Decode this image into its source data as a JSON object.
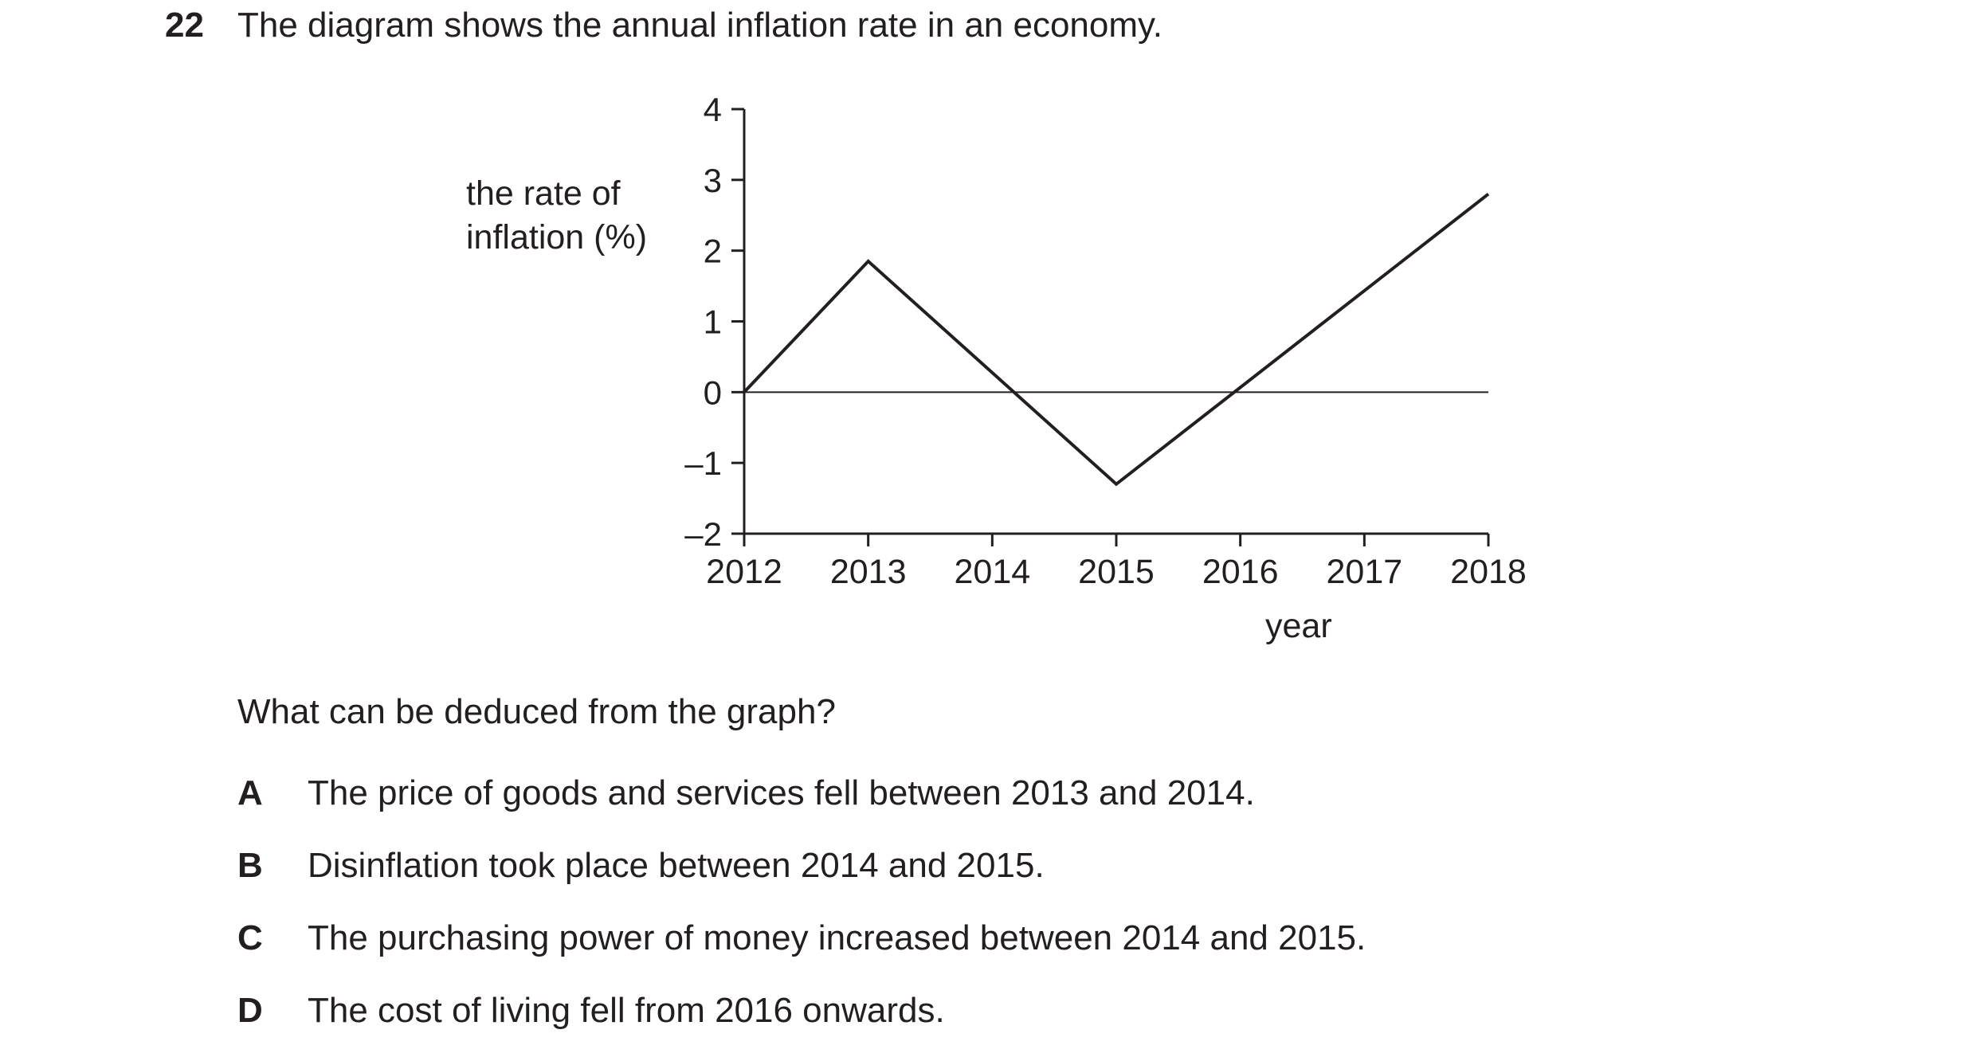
{
  "question": {
    "number": "22",
    "text": "The diagram shows the annual inflation rate in an economy.",
    "prompt": "What can be deduced from the graph?"
  },
  "options": [
    {
      "letter": "A",
      "text": "The price of goods and services fell between 2013 and 2014."
    },
    {
      "letter": "B",
      "text": "Disinflation took place between 2014 and 2015."
    },
    {
      "letter": "C",
      "text": "The purchasing power of money increased between 2014 and 2015."
    },
    {
      "letter": "D",
      "text": "The cost of living fell from 2016 onwards."
    }
  ],
  "chart_data": {
    "type": "line",
    "title": "",
    "ylabel_lines": [
      "the rate of",
      "inflation (%)"
    ],
    "xlabel": "year",
    "x": [
      2012,
      2013,
      2015,
      2018
    ],
    "y": [
      0,
      1.85,
      -1.3,
      2.8
    ],
    "xticks": [
      "2012",
      "2013",
      "2014",
      "2015",
      "2016",
      "2017",
      "2018"
    ],
    "yticks": [
      "4",
      "3",
      "2",
      "1",
      "0",
      "–1",
      "–2"
    ],
    "xlim": [
      2012,
      2018
    ],
    "ylim": [
      -2,
      4
    ],
    "zero_line": true,
    "grid": false,
    "line_color": "#231f20"
  }
}
